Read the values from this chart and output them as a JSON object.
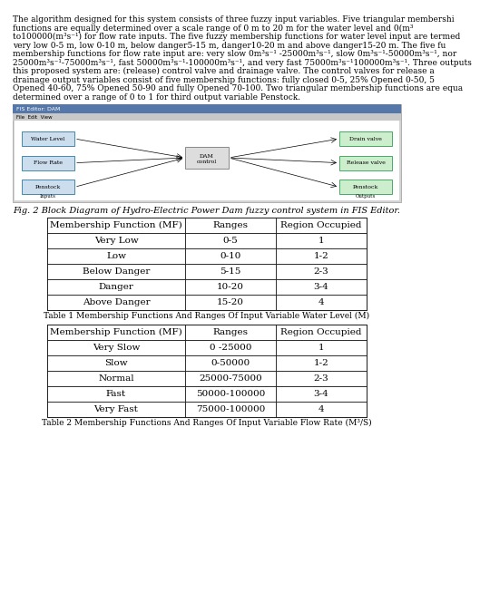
{
  "paragraph_lines": [
    "The algorithm designed for this system consists of three fuzzy input variables. Five triangular membershi",
    "functions are equally determined over a scale range of 0 m to 20 m for the water level and 0(m³",
    "to100000(m³s⁻¹) for flow rate inputs. The five fuzzy membership functions for water level input are termed",
    "very low 0-5 m, low 0-10 m, below danger5-15 m, danger10-20 m and above danger15-20 m. The five fu",
    "membership functions for flow rate input are: very slow 0m³s⁻¹ -25000m³s⁻¹, slow 0m³s⁻¹-50000m³s⁻¹, nor",
    "25000m³s⁻¹-75000m³s⁻¹, fast 50000m³s⁻¹-100000m³s⁻¹, and very fast 75000m³s⁻¹100000m³s⁻¹. Three outputs",
    "this proposed system are: (release) control valve and drainage valve. The control valves for release a",
    "drainage output variables consist of five membership functions: fully closed 0-5, 25% Opened 0-50, 5",
    "Opened 40-60, 75% Opened 50-90 and fully Opened 70-100. Two triangular membership functions are equa",
    "determined over a range of 0 to 1 for third output variable Penstock."
  ],
  "fig_caption": "Fig. 2 Block Diagram of Hydro-Electric Power Dam fuzzy control system in FIS Editor.",
  "table1_title": "Table 1 Membership Functions And Ranges Of Input Variable Water Level (M)",
  "table1_headers": [
    "Membership Function (MF)",
    "Ranges",
    "Region Occupied"
  ],
  "table1_rows": [
    [
      "Very Low",
      "0-5",
      "1"
    ],
    [
      "Low",
      "0-10",
      "1-2"
    ],
    [
      "Below Danger",
      "5-15",
      "2-3"
    ],
    [
      "Danger",
      "10-20",
      "3-4"
    ],
    [
      "Above Danger",
      "15-20",
      "4"
    ]
  ],
  "table2_title": "Table 2 Membership Functions And Ranges Of Input Variable Flow Rate (M³/S)",
  "table2_headers": [
    "Membership Function (MF)",
    "Ranges",
    "Region Occupied"
  ],
  "table2_rows": [
    [
      "Very Slow",
      "0 -25000",
      "1"
    ],
    [
      "Slow",
      "0-50000",
      "1-2"
    ],
    [
      "Normal",
      "25000-75000",
      "2-3"
    ],
    [
      "Fast",
      "50000-100000",
      "3-4"
    ],
    [
      "Very Fast",
      "75000-100000",
      "4"
    ]
  ],
  "bg_color": "#ffffff",
  "text_color": "#000000",
  "para_fontsize": 6.5,
  "para_lineheight": 9.5,
  "table_fontsize": 7.5,
  "caption_fontsize": 7.0,
  "title_fontsize": 6.5,
  "fis_screenshot_bg": "#e8e8e8",
  "fis_bar_color": "#ccddee",
  "fis_bar_border": "#4488aa",
  "fis_output_color": "#cceecc",
  "fis_output_border": "#44aa66",
  "fis_center_color": "#dddddd",
  "fis_center_border": "#888888"
}
